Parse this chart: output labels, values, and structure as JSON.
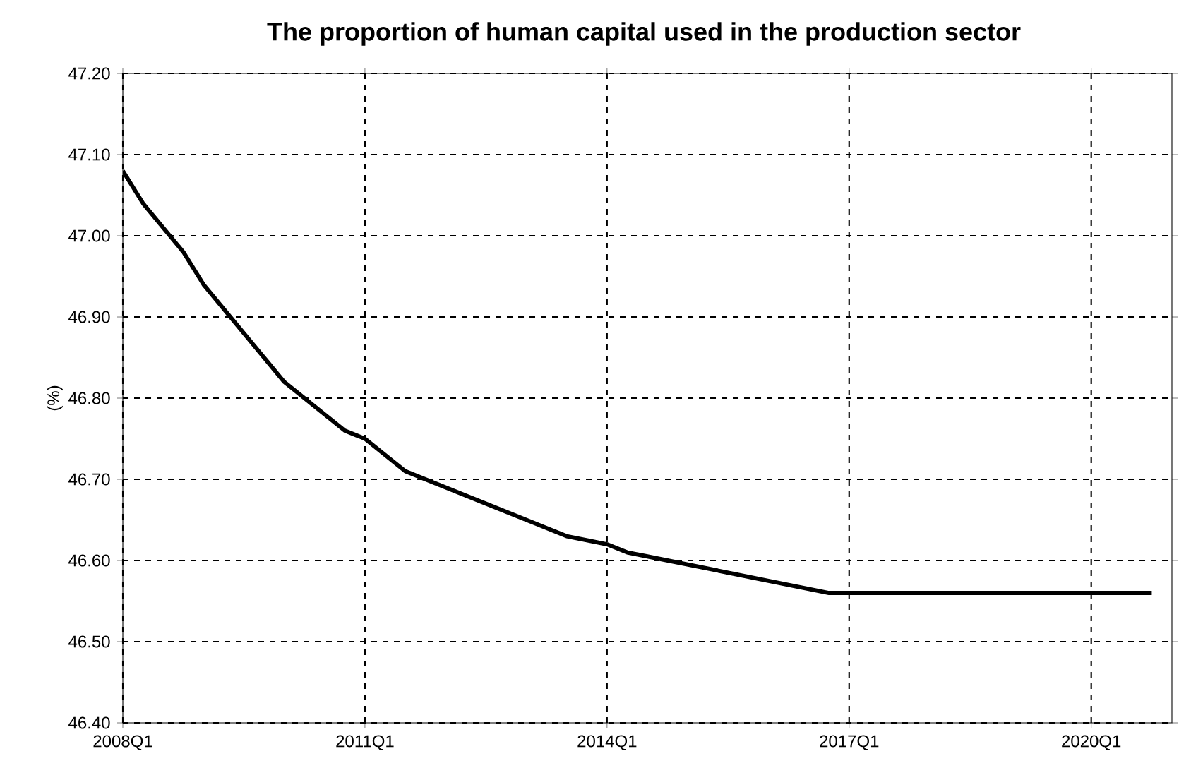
{
  "chart_data": {
    "type": "line",
    "title": "The proportion of human capital used in the production sector",
    "ylabel": "(%)",
    "categories": [
      "2008Q1",
      null,
      null,
      null,
      null,
      null,
      null,
      null,
      null,
      null,
      null,
      null,
      "2011Q1",
      null,
      null,
      null,
      null,
      null,
      null,
      null,
      null,
      null,
      null,
      null,
      "2014Q1",
      null,
      null,
      null,
      null,
      null,
      null,
      null,
      null,
      null,
      null,
      null,
      "2017Q1",
      null,
      null,
      null,
      null,
      null,
      null,
      null,
      null,
      null,
      null,
      null,
      "2020Q1",
      null,
      null,
      null
    ],
    "series": [
      {
        "color": "#000000",
        "values": [
          47.08,
          47.04,
          47.01,
          46.98,
          46.94,
          46.91,
          46.88,
          46.85,
          46.82,
          46.8,
          46.78,
          46.76,
          46.75,
          46.73,
          46.71,
          46.7,
          46.69,
          46.68,
          46.67,
          46.66,
          46.65,
          46.64,
          46.63,
          46.625,
          46.62,
          46.61,
          46.605,
          46.6,
          46.595,
          46.59,
          46.585,
          46.58,
          46.575,
          46.57,
          46.565,
          46.56,
          46.56,
          46.56,
          46.56,
          46.56,
          46.56,
          46.56,
          46.56,
          46.56,
          46.56,
          46.56,
          46.56,
          46.56,
          46.56,
          46.56,
          46.56,
          46.56
        ]
      }
    ],
    "ylim": [
      46.4,
      47.2
    ],
    "yticks": [
      {
        "value": 46.4,
        "label": "46.40"
      },
      {
        "value": 46.5,
        "label": "46.50"
      },
      {
        "value": 46.6,
        "label": "46.60"
      },
      {
        "value": 46.7,
        "label": "46.70"
      },
      {
        "value": 46.8,
        "label": "46.80"
      },
      {
        "value": 46.9,
        "label": "46.90"
      },
      {
        "value": 47.0,
        "label": "47.00"
      },
      {
        "value": 47.1,
        "label": "47.10"
      },
      {
        "value": 47.2,
        "label": "47.20"
      }
    ],
    "grid": true,
    "marker": "none",
    "line_style": "solid"
  }
}
